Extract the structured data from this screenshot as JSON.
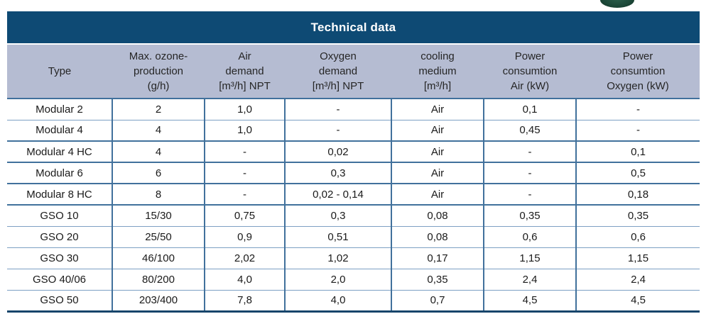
{
  "title_bar": {
    "label": "Technical data"
  },
  "decor": {
    "partial_object": "dark-green-object-edge-top"
  },
  "colors": {
    "title_bar_bg": "#0e4a74",
    "header_bg": "#b5bcd2",
    "grid_line": "#41719c",
    "thin_line": "#7da0c4",
    "bottom_line": "#17456b",
    "decor_green": "#1d4a3a"
  },
  "table": {
    "headers": [
      {
        "id": "type",
        "lines": [
          "Type"
        ]
      },
      {
        "id": "max-ozone-production",
        "lines": [
          "Max. ozone-",
          "production",
          "(g/h)"
        ]
      },
      {
        "id": "air-demand",
        "lines": [
          "Air",
          "demand",
          "[m³/h] NPT"
        ]
      },
      {
        "id": "oxygen-demand",
        "lines": [
          "Oxygen",
          "demand",
          "[m³/h] NPT"
        ]
      },
      {
        "id": "cooling-medium",
        "lines": [
          "cooling",
          "medium",
          "[m³/h]"
        ]
      },
      {
        "id": "power-consumtion-air",
        "lines": [
          "Power",
          "consumtion",
          "Air (kW)"
        ]
      },
      {
        "id": "power-consumtion-oxygen",
        "lines": [
          "Power",
          "consumtion",
          "Oxygen (kW)"
        ]
      }
    ],
    "rows": [
      {
        "type": "Modular 2",
        "values": [
          "2",
          "1,0",
          "-",
          "Air",
          "0,1",
          "-"
        ],
        "separator": "header"
      },
      {
        "type": "Modular 4",
        "values": [
          "4",
          "1,0",
          "-",
          "Air",
          "0,45",
          "-"
        ],
        "separator": "thin"
      },
      {
        "type": "Modular 4 HC",
        "values": [
          "4",
          "-",
          "0,02",
          "Air",
          "-",
          "0,1"
        ],
        "separator": "thick"
      },
      {
        "type": "Modular 6",
        "values": [
          "6",
          "-",
          "0,3",
          "Air",
          "-",
          "0,5"
        ],
        "separator": "thick"
      },
      {
        "type": "Modular 8 HC",
        "values": [
          "8",
          "-",
          "0,02 - 0,14",
          "Air",
          "-",
          "0,18"
        ],
        "separator": "thick"
      },
      {
        "type": "GSO 10",
        "values": [
          "15/30",
          "0,75",
          "0,3",
          "0,08",
          "0,35",
          "0,35"
        ],
        "separator": "thick"
      },
      {
        "type": "GSO 20",
        "values": [
          "25/50",
          "0,9",
          "0,51",
          "0,08",
          "0,6",
          "0,6"
        ],
        "separator": "thin"
      },
      {
        "type": "GSO 30",
        "values": [
          "46/100",
          "2,02",
          "1,02",
          "0,17",
          "1,15",
          "1,15"
        ],
        "separator": "thin"
      },
      {
        "type": "GSO 40/06",
        "values": [
          "80/200",
          "4,0",
          "2,0",
          "0,35",
          "2,4",
          "2,4"
        ],
        "separator": "thin"
      },
      {
        "type": "GSO 50",
        "values": [
          "203/400",
          "7,8",
          "4,0",
          "0,7",
          "4,5",
          "4,5"
        ],
        "separator": "thin"
      }
    ]
  }
}
